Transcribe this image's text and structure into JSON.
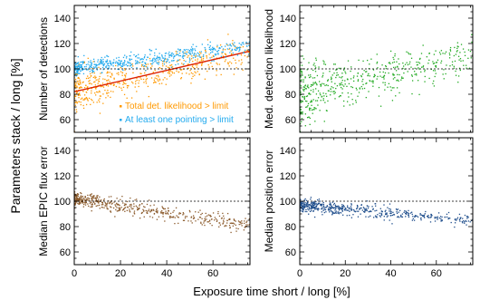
{
  "chart_data": [
    {
      "type": "scatter",
      "panel": "top-left",
      "ylabel": "Number of detections",
      "xlabel": "",
      "xlim": [
        0,
        76
      ],
      "ylim": [
        50,
        150
      ],
      "xticks": [
        0,
        20,
        40,
        60
      ],
      "yticks": [
        60,
        80,
        100,
        120,
        140
      ],
      "reference_line": 100,
      "series": [
        {
          "name": "Total det. likelihood  > limit",
          "color": "#ff9900",
          "trend": {
            "x0": 0,
            "y0": 82,
            "x1": 76,
            "y1": 114
          },
          "scatter": 6,
          "spread_start": 1.5,
          "fit_color": "#dd2200"
        },
        {
          "name": "At least one pointing > limit",
          "color": "#22aaee",
          "trend": {
            "x0": 0,
            "y0": 100,
            "x1": 76,
            "y1": 118
          },
          "scatter": 3,
          "spread_start": 1.0
        }
      ],
      "legend_position": "bottom-right"
    },
    {
      "type": "scatter",
      "panel": "top-right",
      "ylabel": "Med. detection likelihood",
      "xlabel": "",
      "xlim": [
        0,
        76
      ],
      "ylim": [
        50,
        150
      ],
      "xticks": [
        0,
        20,
        40,
        60
      ],
      "yticks": [
        60,
        80,
        100,
        120,
        140
      ],
      "reference_line": 100,
      "series": [
        {
          "color": "#22aa22",
          "trend": {
            "x0": 0,
            "y0": 80,
            "x1": 76,
            "y1": 110
          },
          "scatter": 8,
          "spread_start": 1.6
        }
      ]
    },
    {
      "type": "scatter",
      "panel": "bottom-left",
      "ylabel": "Median EPIC flux error",
      "xlabel": "",
      "xlim": [
        0,
        76
      ],
      "ylim": [
        50,
        150
      ],
      "xticks": [
        0,
        20,
        40,
        60
      ],
      "yticks": [
        60,
        80,
        100,
        120,
        140
      ],
      "reference_line": 100,
      "series": [
        {
          "color": "#8b5a2b",
          "trend": {
            "x0": 0,
            "y0": 102,
            "x1": 76,
            "y1": 80
          },
          "scatter": 3,
          "spread_start": 1.0
        }
      ]
    },
    {
      "type": "scatter",
      "panel": "bottom-right",
      "ylabel": "Median position error",
      "xlabel": "",
      "xlim": [
        0,
        76
      ],
      "ylim": [
        50,
        150
      ],
      "xticks": [
        0,
        20,
        40,
        60
      ],
      "yticks": [
        60,
        80,
        100,
        120,
        140
      ],
      "reference_line": 100,
      "series": [
        {
          "color": "#1f4e8c",
          "trend": {
            "x0": 0,
            "y0": 97,
            "x1": 76,
            "y1": 85
          },
          "scatter": 2.5,
          "spread_start": 1.0
        }
      ]
    }
  ],
  "shared_labels": {
    "xlabel": "Exposure time short / long [%]",
    "ylabel": "Parameters stack / long   [%]"
  }
}
